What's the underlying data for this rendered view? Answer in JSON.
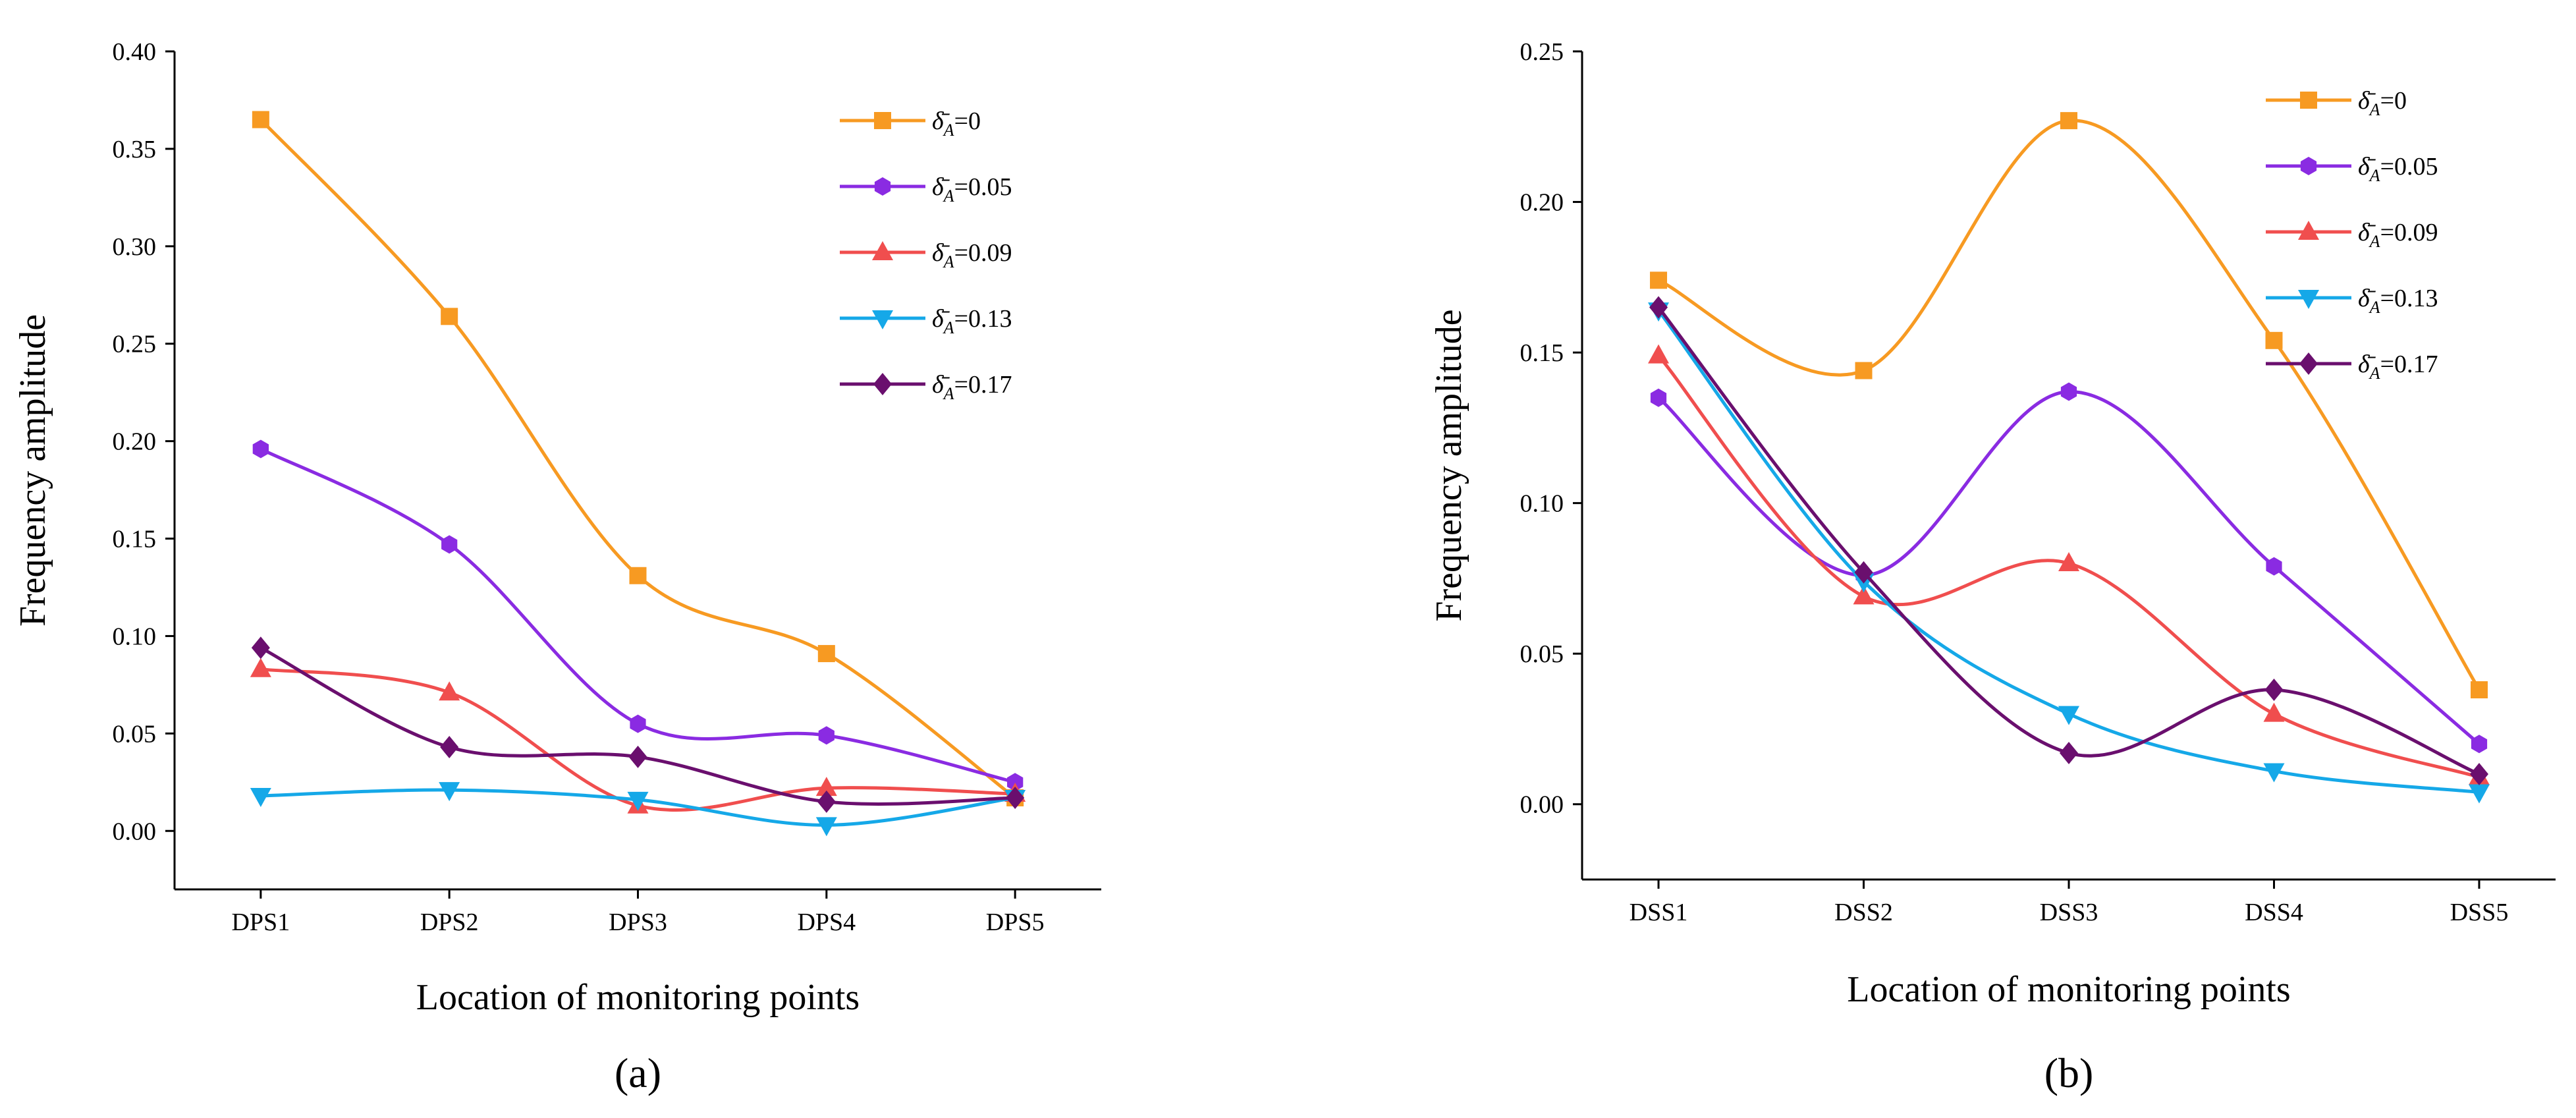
{
  "chart_data": [
    {
      "type": "line",
      "panel_label": "(a)",
      "xlabel": "Location of monitoring points",
      "ylabel": "Frequency amplitude",
      "categories": [
        "DPS1",
        "DPS2",
        "DPS3",
        "DPS4",
        "DPS5"
      ],
      "ylim": [
        -0.03,
        0.4
      ],
      "yticks": [
        "0.00",
        "0.05",
        "0.10",
        "0.15",
        "0.20",
        "0.25",
        "0.30",
        "0.35",
        "0.40"
      ],
      "legend_position": "top-right",
      "series": [
        {
          "name": "δ̄A=0",
          "legend_value": "=0",
          "color": "#F79A22",
          "marker": "square",
          "values": [
            0.365,
            0.264,
            0.131,
            0.091,
            0.017
          ]
        },
        {
          "name": "δ̄A=0.05",
          "legend_value": "=0.05",
          "color": "#8A2BE2",
          "marker": "hexagon",
          "values": [
            0.196,
            0.147,
            0.055,
            0.049,
            0.025
          ]
        },
        {
          "name": "δ̄A=0.09",
          "legend_value": "=0.09",
          "color": "#F04E4E",
          "marker": "triangle-up",
          "values": [
            0.083,
            0.071,
            0.013,
            0.022,
            0.019
          ]
        },
        {
          "name": "δ̄A=0.13",
          "legend_value": "=0.13",
          "color": "#15A8E8",
          "marker": "triangle-down",
          "values": [
            0.018,
            0.021,
            0.016,
            0.003,
            0.017
          ]
        },
        {
          "name": "δ̄A=0.17",
          "legend_value": "=0.17",
          "color": "#6A0F6E",
          "marker": "diamond",
          "values": [
            0.094,
            0.043,
            0.038,
            0.015,
            0.017
          ]
        }
      ]
    },
    {
      "type": "line",
      "panel_label": "(b)",
      "xlabel": "Location of monitoring points",
      "ylabel": "Frequency amplitude",
      "categories": [
        "DSS1",
        "DSS2",
        "DSS3",
        "DSS4",
        "DSS5"
      ],
      "ylim": [
        -0.025,
        0.25
      ],
      "yticks": [
        "0.00",
        "0.05",
        "0.10",
        "0.15",
        "0.20",
        "0.25"
      ],
      "legend_position": "top-right",
      "series": [
        {
          "name": "δ̄A=0",
          "legend_value": "=0",
          "color": "#F79A22",
          "marker": "square",
          "values": [
            0.174,
            0.144,
            0.227,
            0.154,
            0.038
          ]
        },
        {
          "name": "δ̄A=0.05",
          "legend_value": "=0.05",
          "color": "#8A2BE2",
          "marker": "hexagon",
          "values": [
            0.135,
            0.076,
            0.137,
            0.079,
            0.02
          ]
        },
        {
          "name": "δ̄A=0.09",
          "legend_value": "=0.09",
          "color": "#F04E4E",
          "marker": "triangle-up",
          "values": [
            0.149,
            0.069,
            0.08,
            0.03,
            0.009
          ]
        },
        {
          "name": "δ̄A=0.13",
          "legend_value": "=0.13",
          "color": "#15A8E8",
          "marker": "triangle-down",
          "values": [
            0.164,
            0.074,
            0.03,
            0.011,
            0.004
          ]
        },
        {
          "name": "δ̄A=0.17",
          "legend_value": "=0.17",
          "color": "#6A0F6E",
          "marker": "diamond",
          "values": [
            0.165,
            0.077,
            0.017,
            0.038,
            0.01
          ]
        }
      ]
    }
  ]
}
